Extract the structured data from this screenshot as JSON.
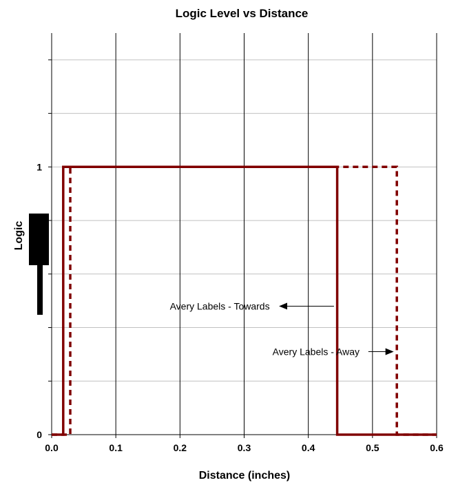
{
  "chart_data": {
    "type": "line",
    "title": "Logic Level vs Distance",
    "xlabel": "Distance (inches)",
    "ylabel": "Logic",
    "xlim": [
      0.0,
      0.6
    ],
    "ylim": [
      0,
      1.5
    ],
    "x_ticks": [
      "0.0",
      "0.1",
      "0.2",
      "0.3",
      "0.4",
      "0.5",
      "0.6"
    ],
    "y_ticks": [
      "0",
      "1"
    ],
    "grid": true,
    "series": [
      {
        "name": "Avery Labels - Towards",
        "style": "solid",
        "color": "#800000",
        "x": [
          0.0,
          0.018,
          0.018,
          0.445,
          0.445,
          0.6
        ],
        "y": [
          0,
          0,
          1,
          1,
          0,
          0
        ]
      },
      {
        "name": "Avery Labels - Away",
        "style": "dashed",
        "color": "#800000",
        "x": [
          0.0,
          0.029,
          0.029,
          0.538,
          0.538,
          0.6
        ],
        "y": [
          0,
          0,
          1,
          1,
          0,
          0
        ]
      }
    ],
    "annotations": [
      {
        "text": "Avery Labels - Towards",
        "x": 0.262,
        "y": 0.48,
        "arrow_to": [
          0.44,
          0.48
        ]
      },
      {
        "text": "Avery Labels - Away",
        "x": 0.412,
        "y": 0.31,
        "arrow_to": [
          0.532,
          0.31
        ]
      }
    ]
  }
}
